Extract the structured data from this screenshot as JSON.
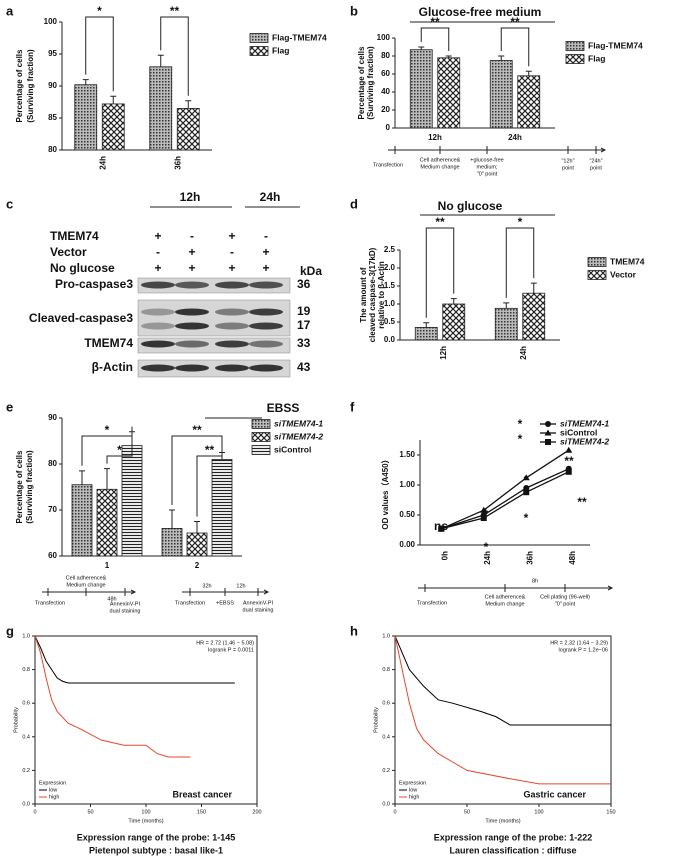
{
  "chart_data": [
    {
      "label": "a",
      "type": "bar",
      "ylabel": [
        "Percentage of cells",
        "(Surviving fraction)"
      ],
      "categories": [
        "24h",
        "36h"
      ],
      "series": [
        {
          "name": "Flag-TMEM74",
          "hatch": "dots",
          "values": [
            90.2,
            93.0
          ],
          "errors": [
            0.8,
            1.8
          ]
        },
        {
          "name": "Flag",
          "hatch": "check",
          "values": [
            87.2,
            86.5
          ],
          "errors": [
            1.2,
            1.2
          ]
        }
      ],
      "ylim": [
        80,
        100
      ],
      "yticks": [
        80,
        85,
        90,
        95,
        100
      ],
      "annotations": [
        "*",
        "**"
      ]
    },
    {
      "label": "b",
      "type": "bar",
      "title": "Glucose-free medium",
      "ylabel": [
        "Percentage of cells",
        "(Surviving fraction)"
      ],
      "categories": [
        "12h",
        "24h"
      ],
      "series": [
        {
          "name": "Flag-TMEM74",
          "hatch": "dots",
          "values": [
            87,
            75
          ],
          "errors": [
            3,
            5
          ]
        },
        {
          "name": "Flag",
          "hatch": "check",
          "values": [
            78,
            58
          ],
          "errors": [
            2,
            5
          ]
        }
      ],
      "ylim": [
        0,
        100
      ],
      "yticks": [
        0,
        20,
        40,
        60,
        80,
        100
      ],
      "annotations": [
        "**",
        "**"
      ],
      "timeline": [
        "Transfection",
        "Cell adherence&",
        "Medium change",
        "+glucose-free",
        "medium;",
        "\"0\" point",
        "\"12h\"",
        "point",
        "\"24h\"",
        "point"
      ]
    },
    {
      "label": "d",
      "type": "bar",
      "title": "No glucose",
      "ylabel": [
        "The amount of",
        "cleaved caspase-3(17kD)",
        "relative to β-Actin"
      ],
      "categories": [
        "12h",
        "24h"
      ],
      "series": [
        {
          "name": "TMEM74",
          "hatch": "dots",
          "values": [
            0.35,
            0.88
          ],
          "errors": [
            0.13,
            0.15
          ]
        },
        {
          "name": "Vector",
          "hatch": "check",
          "values": [
            1.0,
            1.3
          ],
          "errors": [
            0.15,
            0.28
          ]
        }
      ],
      "ylim": [
        0,
        2.5
      ],
      "yticks": [
        {
          "value": 0,
          "label": "0.0"
        },
        0.5,
        {
          "value": 1,
          "label": "1.0"
        },
        1.5,
        {
          "value": 2,
          "label": "2.0"
        },
        2.5
      ],
      "annotations": [
        "**",
        "*"
      ]
    },
    {
      "label": "e",
      "type": "bar",
      "title": "EBSS",
      "ylabel": [
        "Percentage of cells",
        "(Surviving fraction)"
      ],
      "categories": [
        "1",
        "2"
      ],
      "series": [
        {
          "name": "siTMEM74-1",
          "hatch": "dots",
          "values": [
            75.5,
            66
          ],
          "errors": [
            3,
            4
          ]
        },
        {
          "name": "siTMEM74-2",
          "hatch": "check",
          "values": [
            74.5,
            65
          ],
          "errors": [
            4.5,
            2.5
          ]
        },
        {
          "name": "siControl",
          "hatch": "lines",
          "values": [
            84,
            81
          ],
          "errors": [
            3,
            1.5
          ]
        }
      ],
      "ylim": [
        60,
        90
      ],
      "yticks": [
        60,
        70,
        80,
        90
      ],
      "annotations": [
        "*",
        "*",
        "**",
        "**"
      ],
      "timeline": [
        "Cell adherence&",
        "Medium change",
        "48h",
        "Transfection",
        "AnnexinV-PI",
        "dual staining",
        "32h",
        "12h",
        "Transfection",
        "+EBSS",
        "AnnexinV-PI",
        "dual staining"
      ]
    },
    {
      "label": "f",
      "type": "line",
      "ylabel": [
        "OD values（A450）"
      ],
      "categories": [
        "0h",
        "24h",
        "36h",
        "48h"
      ],
      "series": [
        {
          "name": "siTMEM74-1",
          "marker": "circle",
          "values": [
            0.27,
            0.5,
            0.95,
            1.27
          ]
        },
        {
          "name": "siControl",
          "marker": "triangle",
          "values": [
            0.27,
            0.58,
            1.12,
            1.58
          ]
        },
        {
          "name": "siTMEM74-2",
          "marker": "square",
          "values": [
            0.27,
            0.45,
            0.88,
            1.22
          ]
        }
      ],
      "ylim": [
        0,
        1.75
      ],
      "yticks": [
        {
          "value": 0,
          "label": "0.00"
        },
        {
          "value": 0.5,
          "label": "0.50"
        },
        {
          "value": 1,
          "label": "1.00"
        },
        {
          "value": 1.5,
          "label": "1.50"
        }
      ],
      "annotations": [
        "ns",
        "*",
        "*",
        "*",
        "*",
        "**",
        "**",
        "*",
        "*"
      ],
      "timeline": [
        "8h",
        "Transfection",
        "Cell adherence&",
        "Medium change",
        "Cell plating (96-well)",
        "\"0\" point"
      ]
    },
    {
      "label": "g",
      "type": "line",
      "hr": "HR = 2.72 (1.46 − 5.08)",
      "logrank": "logrank P = 0.0011",
      "cancer": "Breast cancer",
      "legend_title": "Expression",
      "xlabel": "Time (months)",
      "ylabel": [
        "Probability"
      ],
      "series": [
        {
          "name": "low",
          "color": "#000000",
          "x": [
            0,
            5,
            10,
            15,
            20,
            25,
            30,
            50,
            100,
            180
          ],
          "values": [
            1,
            0.93,
            0.85,
            0.8,
            0.75,
            0.73,
            0.72,
            0.72,
            0.72,
            0.72
          ]
        },
        {
          "name": "high",
          "color": "#e8462a",
          "x": [
            0,
            5,
            10,
            15,
            20,
            30,
            40,
            60,
            80,
            100,
            110,
            120,
            130,
            140
          ],
          "values": [
            1,
            0.9,
            0.75,
            0.62,
            0.55,
            0.48,
            0.45,
            0.38,
            0.35,
            0.35,
            0.3,
            0.28,
            0.28,
            0.28
          ]
        }
      ],
      "xlim": [
        0,
        200
      ],
      "xticks": [
        0,
        50,
        100,
        150,
        200
      ],
      "ylim": [
        0,
        1
      ],
      "yticks": [
        {
          "value": 0,
          "label": "0.0"
        },
        0.2,
        0.4,
        0.6,
        0.8,
        {
          "value": 1,
          "label": "1.0"
        }
      ],
      "captions": [
        "Expression range of the probe: 1-145",
        "Pietenpol subtype : basal like-1"
      ]
    },
    {
      "label": "h",
      "type": "line",
      "hr": "HR = 2.32 (1.64 − 3.29)",
      "logrank": "logrank P = 1.2e−06",
      "cancer": "Gastric cancer",
      "legend_title": "Expression",
      "xlabel": "Time (months)",
      "ylabel": [
        "Probability"
      ],
      "series": [
        {
          "name": "low",
          "color": "#000000",
          "x": [
            0,
            5,
            10,
            20,
            30,
            40,
            60,
            70,
            80,
            100,
            150
          ],
          "values": [
            1,
            0.9,
            0.8,
            0.7,
            0.62,
            0.6,
            0.55,
            0.52,
            0.47,
            0.47,
            0.47
          ]
        },
        {
          "name": "high",
          "color": "#e8462a",
          "x": [
            0,
            5,
            10,
            15,
            20,
            30,
            40,
            50,
            80,
            100,
            150
          ],
          "values": [
            1,
            0.8,
            0.6,
            0.45,
            0.38,
            0.3,
            0.25,
            0.2,
            0.15,
            0.12,
            0.12
          ]
        }
      ],
      "xlim": [
        0,
        150
      ],
      "xticks": [
        0,
        50,
        100,
        150
      ],
      "ylim": [
        0,
        1
      ],
      "yticks": [
        {
          "value": 0,
          "label": "0.0"
        },
        0.2,
        0.4,
        0.6,
        0.8,
        {
          "value": 1,
          "label": "1.0"
        }
      ],
      "captions": [
        "Expression range of the probe: 1-222",
        "Lauren classification : diffuse"
      ]
    }
  ],
  "blot": {
    "label": "c",
    "headers": [
      "12h",
      "24h"
    ],
    "conditions": [
      {
        "name": "TMEM74",
        "signs": [
          "+",
          "-",
          "+",
          "-"
        ]
      },
      {
        "name": "Vector",
        "signs": [
          "-",
          "+",
          "-",
          "+"
        ]
      },
      {
        "name": "No glucose",
        "signs": [
          "+",
          "+",
          "+",
          "+"
        ]
      }
    ],
    "kda_title": "kDa",
    "bands": [
      {
        "name": "Pro-caspase3",
        "kda": [
          "36"
        ]
      },
      {
        "name": "Cleaved-caspase3",
        "kda": [
          "19",
          "17"
        ]
      },
      {
        "name": "TMEM74",
        "kda": [
          "33"
        ]
      },
      {
        "name": "β-Actin",
        "kda": [
          "43"
        ]
      }
    ]
  }
}
